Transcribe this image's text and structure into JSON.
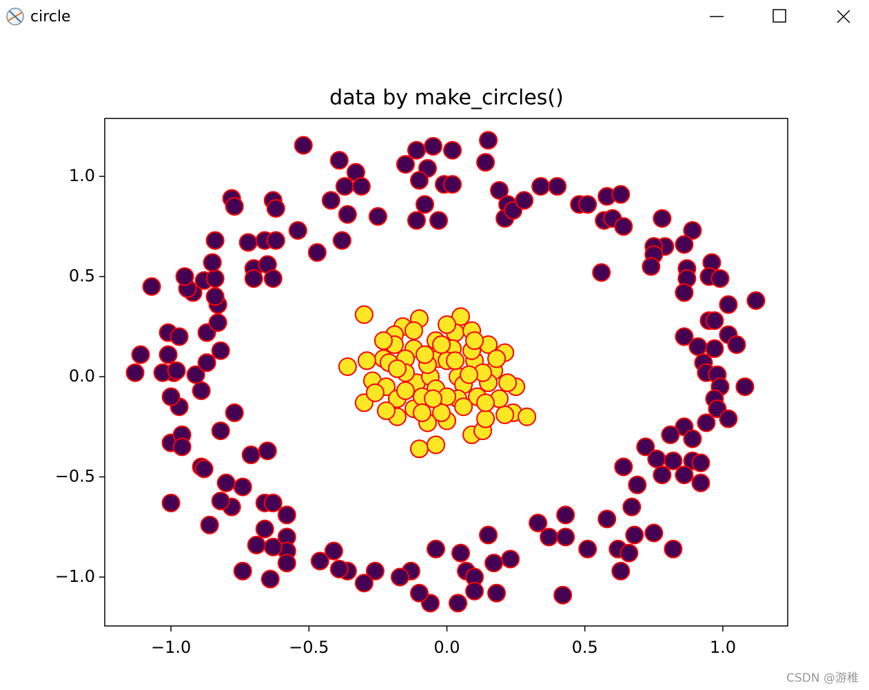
{
  "window": {
    "title": "circle"
  },
  "watermark": "CSDN @游稚",
  "chart_data": {
    "type": "scatter",
    "title": "data by make_circles()",
    "xlim": [
      -1.24,
      1.235
    ],
    "ylim": [
      -1.244,
      1.289
    ],
    "xticks": [
      {
        "value": -1.0,
        "label": "−1.0"
      },
      {
        "value": -0.5,
        "label": "−0.5"
      },
      {
        "value": 0.0,
        "label": "0.0"
      },
      0.5,
      {
        "value": 1.0,
        "label": "1.0"
      }
    ],
    "yticks": [
      {
        "value": -1.0,
        "label": "−1.0"
      },
      {
        "value": -0.5,
        "label": "−0.5"
      },
      {
        "value": 0.0,
        "label": "0.0"
      },
      0.5,
      {
        "value": 1.0,
        "label": "1.0"
      }
    ],
    "edgecolor": "#ff0000",
    "series": [
      {
        "color": "#440154",
        "x": [
          -0.52,
          -0.39,
          -0.33,
          -0.37,
          -0.31,
          -0.42,
          -0.36,
          -0.25,
          -0.38,
          -0.54,
          -0.47,
          -0.11,
          -0.05,
          0.02,
          0.15,
          0.14,
          -0.15,
          -0.07,
          -0.1,
          -0.01,
          0.02,
          -0.08,
          -0.11,
          -0.03,
          0.19,
          0.22,
          0.21,
          0.24,
          0.28,
          0.34,
          0.4,
          0.48,
          0.51,
          0.58,
          0.63,
          0.57,
          0.6,
          0.64,
          0.78,
          0.89,
          0.86,
          0.79,
          0.75,
          0.75,
          0.74,
          0.87,
          0.87,
          0.96,
          0.95,
          0.99,
          0.86,
          0.56,
          1.02,
          1.12,
          0.95,
          0.97,
          1.02,
          1.05,
          0.86,
          0.91,
          0.97,
          0.93,
          0.94,
          0.98,
          0.99,
          1.08,
          0.97,
          0.98,
          1.02,
          0.94,
          0.86,
          0.89,
          0.81,
          0.72,
          0.76,
          0.82,
          0.89,
          0.92,
          0.78,
          0.86,
          0.92,
          0.64,
          0.69,
          0.67,
          0.58,
          0.43,
          0.33,
          0.37,
          0.43,
          0.15,
          0.51,
          0.62,
          0.68,
          0.75,
          0.82,
          0.66,
          0.63,
          0.42,
          -0.04,
          0.05,
          0.07,
          0.1,
          0.17,
          0.23,
          0.1,
          0.18,
          0.04,
          -0.06,
          -0.1,
          -0.13,
          -0.17,
          -0.26,
          -0.3,
          -0.36,
          -0.41,
          -0.39,
          -0.46,
          -0.58,
          -0.58,
          -0.58,
          -0.58,
          -0.63,
          -0.66,
          -0.69,
          -0.64,
          -0.74,
          -0.66,
          -0.63,
          -0.74,
          -0.8,
          -0.78,
          -0.82,
          -0.86,
          -1.0,
          -0.89,
          -0.88,
          -0.71,
          -0.65,
          -1.0,
          -0.96,
          -0.96,
          -0.82,
          -0.77,
          -0.97,
          -1.0,
          -0.89,
          -0.91,
          -0.87,
          -0.99,
          -1.03,
          -1.13,
          -1.11,
          -1.01,
          -0.98,
          -0.82,
          -1.01,
          -0.97,
          -0.87,
          -0.83,
          -0.83,
          -0.84,
          -0.92,
          -0.94,
          -0.88,
          -0.84,
          -0.95,
          -1.07,
          -0.85,
          -0.84,
          -0.72,
          -0.66,
          -0.62,
          -0.7,
          -0.65,
          -0.63,
          -0.7,
          -0.78,
          -0.77,
          -0.63,
          -0.62
        ],
        "values": [
          1.155,
          1.08,
          1.02,
          0.95,
          0.95,
          0.88,
          0.81,
          0.8,
          0.68,
          0.73,
          0.62,
          1.13,
          1.15,
          1.13,
          1.18,
          1.07,
          1.06,
          1.04,
          0.98,
          0.96,
          0.96,
          0.86,
          0.78,
          0.78,
          0.93,
          0.86,
          0.79,
          0.83,
          0.88,
          0.95,
          0.95,
          0.86,
          0.86,
          0.9,
          0.91,
          0.78,
          0.79,
          0.75,
          0.79,
          0.73,
          0.66,
          0.65,
          0.65,
          0.61,
          0.55,
          0.54,
          0.49,
          0.57,
          0.5,
          0.49,
          0.42,
          0.52,
          0.36,
          0.38,
          0.28,
          0.28,
          0.21,
          0.16,
          0.2,
          0.15,
          0.14,
          0.07,
          0.02,
          0.01,
          -0.05,
          -0.05,
          -0.11,
          -0.16,
          -0.21,
          -0.23,
          -0.25,
          -0.31,
          -0.29,
          -0.35,
          -0.41,
          -0.42,
          -0.42,
          -0.43,
          -0.49,
          -0.49,
          -0.53,
          -0.45,
          -0.54,
          -0.65,
          -0.71,
          -0.69,
          -0.73,
          -0.8,
          -0.8,
          -0.79,
          -0.86,
          -0.86,
          -0.79,
          -0.78,
          -0.86,
          -0.88,
          -0.97,
          -1.09,
          -0.86,
          -0.88,
          -0.97,
          -1.0,
          -0.93,
          -0.91,
          -1.07,
          -1.08,
          -1.13,
          -1.13,
          -1.08,
          -0.97,
          -1.0,
          -0.97,
          -1.03,
          -0.97,
          -0.87,
          -0.96,
          -0.92,
          -0.69,
          -0.8,
          -0.87,
          -0.93,
          -0.85,
          -0.76,
          -0.84,
          -1.01,
          -0.97,
          -0.63,
          -0.63,
          -0.55,
          -0.53,
          -0.65,
          -0.62,
          -0.74,
          -0.63,
          -0.45,
          -0.46,
          -0.39,
          -0.37,
          -0.33,
          -0.29,
          -0.35,
          -0.27,
          -0.18,
          -0.15,
          -0.1,
          -0.07,
          0.01,
          0.07,
          0.02,
          0.02,
          0.02,
          0.11,
          0.11,
          0.03,
          0.13,
          0.22,
          0.2,
          0.22,
          0.27,
          0.36,
          0.4,
          0.42,
          0.44,
          0.48,
          0.49,
          0.5,
          0.45,
          0.57,
          0.68,
          0.67,
          0.68,
          0.68,
          0.54,
          0.56,
          0.49,
          0.49,
          0.89,
          0.85,
          0.88,
          0.84
        ]
      },
      {
        "color": "#fde725",
        "x": [
          -0.3,
          -0.36,
          -0.3,
          -0.1,
          -0.04,
          -0.07,
          0.0,
          0.09,
          0.13,
          0.14,
          0.24,
          0.29,
          0.21,
          0.19,
          0.25,
          0.22,
          0.21,
          0.15,
          0.17,
          0.1,
          0.05,
          0.03,
          0.09,
          0.02,
          -0.04,
          -0.1,
          -0.16,
          -0.19,
          -0.12,
          -0.19,
          -0.23,
          -0.21,
          -0.29,
          -0.27,
          -0.22,
          -0.18,
          -0.18,
          -0.12,
          -0.11,
          -0.06,
          -0.04,
          -0.03,
          0.0,
          0.04,
          0.06,
          0.11,
          0.04,
          0.15,
          0.13,
          -0.07,
          -0.15,
          -0.15,
          -0.22,
          -0.15,
          0.0,
          -0.02,
          -0.09,
          0.09,
          0.0,
          -0.12,
          -0.08,
          -0.18,
          0.18,
          0.03,
          0.08,
          0.14,
          0.06,
          -0.09,
          -0.26,
          -0.23,
          -0.05,
          0.1,
          -0.02
        ],
        "values": [
          0.31,
          0.05,
          -0.13,
          -0.36,
          -0.34,
          -0.23,
          -0.22,
          -0.29,
          -0.27,
          -0.21,
          -0.18,
          -0.2,
          -0.19,
          -0.11,
          -0.05,
          -0.03,
          0.12,
          0.16,
          0.03,
          0.08,
          0.3,
          0.22,
          0.23,
          0.14,
          0.18,
          0.29,
          0.25,
          0.21,
          0.14,
          0.16,
          0.09,
          0.07,
          0.08,
          -0.02,
          -0.05,
          -0.11,
          -0.2,
          -0.16,
          -0.03,
          0.0,
          -0.06,
          0.09,
          0.08,
          0.0,
          -0.04,
          -0.1,
          -0.11,
          -0.03,
          0.02,
          0.06,
          0.09,
          0.02,
          -0.17,
          -0.07,
          -0.1,
          -0.18,
          -0.1,
          0.13,
          0.26,
          0.23,
          0.11,
          0.04,
          0.09,
          0.08,
          0.01,
          -0.13,
          -0.15,
          -0.18,
          -0.08,
          0.18,
          -0.11,
          0.18,
          0.16
        ]
      }
    ]
  }
}
